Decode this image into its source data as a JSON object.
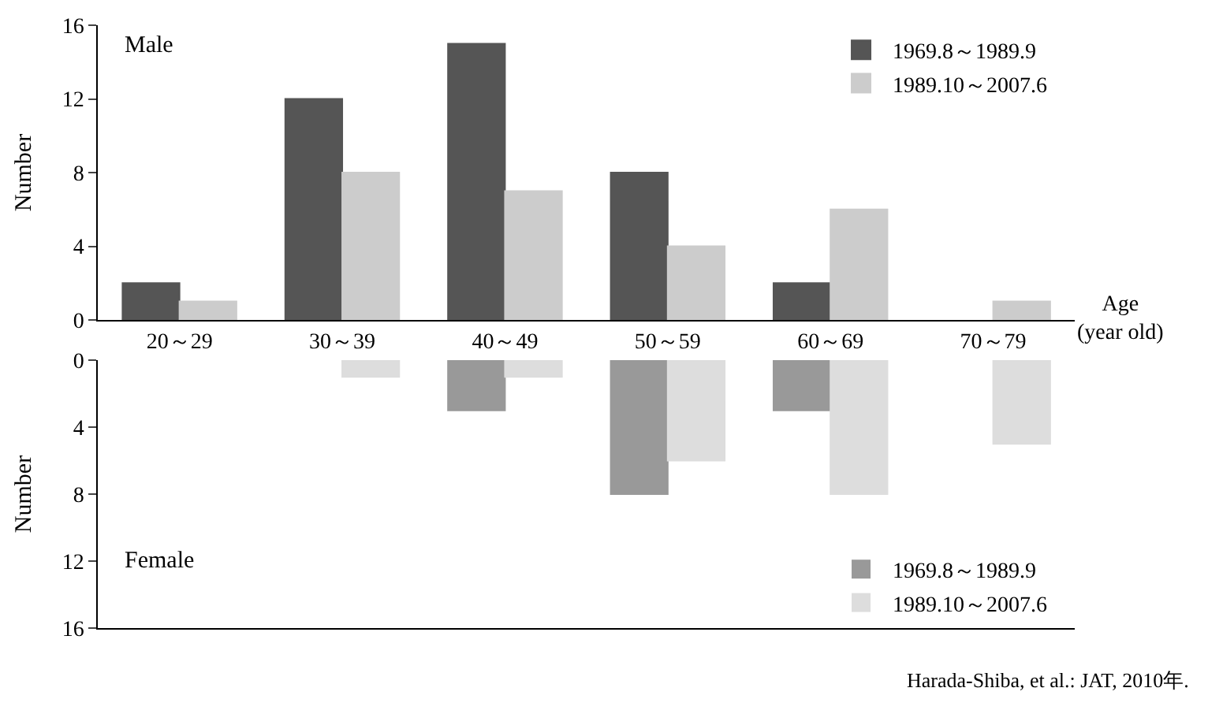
{
  "chart_data": [
    {
      "type": "bar",
      "categories": [
        "20～29",
        "30～39",
        "40～49",
        "50～59",
        "60～69",
        "70～79"
      ],
      "xlabel": "Age\n(year old)",
      "ylabel": "Number",
      "ylim": [
        0,
        16
      ],
      "yticks": [
        0,
        4,
        8,
        12,
        16
      ],
      "legend": "top right",
      "annotations": [
        "Male"
      ],
      "series": [
        {
          "name": "1969.8～1989.9",
          "color": "#555555",
          "values": [
            2,
            12,
            15,
            8,
            2,
            0
          ]
        },
        {
          "name": "1989.10～2007.6",
          "color": "#cccccc",
          "values": [
            1,
            8,
            7,
            4,
            6,
            1
          ]
        }
      ]
    },
    {
      "type": "bar",
      "categories": [
        "20～29",
        "30～39",
        "40～49",
        "50～59",
        "60～69",
        "70～79"
      ],
      "ylabel": "Number",
      "ylim": [
        16,
        0
      ],
      "yticks": [
        0,
        4,
        8,
        12,
        16
      ],
      "legend": "bottom right",
      "tick_labels": "y",
      "annotations": [
        "Female",
        "Harada-Shiba, et al.: JAT, 2010年."
      ],
      "series": [
        {
          "name": "1969.8～1989.9",
          "color": "#999999",
          "values": [
            0,
            0,
            3,
            8,
            3,
            0
          ]
        },
        {
          "name": "1989.10～2007.6",
          "color": "#dddddd",
          "values": [
            0,
            1,
            1,
            6,
            8,
            5
          ]
        }
      ]
    }
  ]
}
